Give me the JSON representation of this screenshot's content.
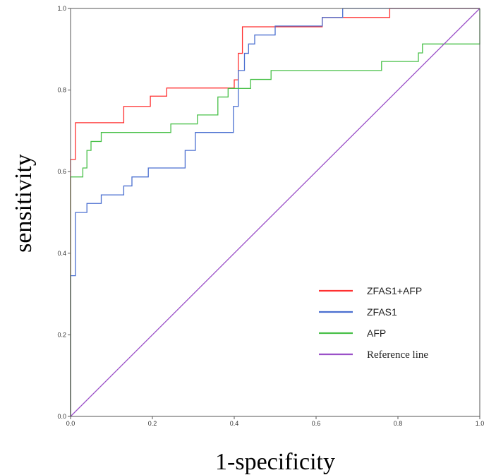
{
  "chart_data": {
    "type": "line",
    "xlabel": "1-specificity",
    "ylabel": "sensitivity",
    "xlim": [
      0,
      1
    ],
    "ylim": [
      0,
      1
    ],
    "xticks": [
      "0.0",
      "0.2",
      "0.4",
      "0.6",
      "0.8",
      "1.0"
    ],
    "yticks": [
      "0.0",
      "0.2",
      "0.4",
      "0.6",
      "0.8",
      "1.0"
    ],
    "grid": false,
    "legend_position": "bottom-right",
    "series": [
      {
        "name": "ZFAS1+AFP",
        "color": "#ff3030",
        "points": [
          [
            0,
            0
          ],
          [
            0,
            0.63
          ],
          [
            0.012,
            0.63
          ],
          [
            0.012,
            0.72
          ],
          [
            0.13,
            0.72
          ],
          [
            0.13,
            0.76
          ],
          [
            0.195,
            0.76
          ],
          [
            0.195,
            0.785
          ],
          [
            0.235,
            0.785
          ],
          [
            0.235,
            0.805
          ],
          [
            0.4,
            0.805
          ],
          [
            0.4,
            0.825
          ],
          [
            0.41,
            0.825
          ],
          [
            0.41,
            0.89
          ],
          [
            0.42,
            0.89
          ],
          [
            0.42,
            0.955
          ],
          [
            0.615,
            0.955
          ],
          [
            0.615,
            0.978
          ],
          [
            0.78,
            0.978
          ],
          [
            0.78,
            1.0
          ],
          [
            1.0,
            1.0
          ]
        ]
      },
      {
        "name": "ZFAS1",
        "color": "#4a6fd0",
        "points": [
          [
            0,
            0
          ],
          [
            0,
            0.345
          ],
          [
            0.012,
            0.345
          ],
          [
            0.012,
            0.5
          ],
          [
            0.04,
            0.5
          ],
          [
            0.04,
            0.522
          ],
          [
            0.075,
            0.522
          ],
          [
            0.075,
            0.543
          ],
          [
            0.13,
            0.543
          ],
          [
            0.13,
            0.565
          ],
          [
            0.15,
            0.565
          ],
          [
            0.15,
            0.587
          ],
          [
            0.19,
            0.587
          ],
          [
            0.19,
            0.609
          ],
          [
            0.28,
            0.609
          ],
          [
            0.28,
            0.652
          ],
          [
            0.305,
            0.652
          ],
          [
            0.305,
            0.696
          ],
          [
            0.398,
            0.696
          ],
          [
            0.398,
            0.76
          ],
          [
            0.41,
            0.76
          ],
          [
            0.41,
            0.848
          ],
          [
            0.425,
            0.848
          ],
          [
            0.425,
            0.89
          ],
          [
            0.435,
            0.89
          ],
          [
            0.435,
            0.913
          ],
          [
            0.45,
            0.913
          ],
          [
            0.45,
            0.935
          ],
          [
            0.5,
            0.935
          ],
          [
            0.5,
            0.957
          ],
          [
            0.615,
            0.957
          ],
          [
            0.615,
            0.978
          ],
          [
            0.665,
            0.978
          ],
          [
            0.665,
            1.0
          ],
          [
            1.0,
            1.0
          ]
        ]
      },
      {
        "name": "AFP",
        "color": "#48c048",
        "points": [
          [
            0,
            0
          ],
          [
            0,
            0.587
          ],
          [
            0.03,
            0.587
          ],
          [
            0.03,
            0.609
          ],
          [
            0.04,
            0.609
          ],
          [
            0.04,
            0.652
          ],
          [
            0.05,
            0.652
          ],
          [
            0.05,
            0.674
          ],
          [
            0.075,
            0.674
          ],
          [
            0.075,
            0.696
          ],
          [
            0.245,
            0.696
          ],
          [
            0.245,
            0.717
          ],
          [
            0.31,
            0.717
          ],
          [
            0.31,
            0.739
          ],
          [
            0.36,
            0.739
          ],
          [
            0.36,
            0.783
          ],
          [
            0.385,
            0.783
          ],
          [
            0.385,
            0.804
          ],
          [
            0.44,
            0.804
          ],
          [
            0.44,
            0.826
          ],
          [
            0.49,
            0.826
          ],
          [
            0.49,
            0.848
          ],
          [
            0.76,
            0.848
          ],
          [
            0.76,
            0.87
          ],
          [
            0.85,
            0.87
          ],
          [
            0.85,
            0.891
          ],
          [
            0.86,
            0.891
          ],
          [
            0.86,
            0.913
          ],
          [
            1.0,
            0.913
          ],
          [
            1.0,
            1.0
          ]
        ]
      },
      {
        "name": "Reference line",
        "color": "#9b50c8",
        "points": [
          [
            0,
            0
          ],
          [
            1,
            1
          ]
        ]
      }
    ]
  }
}
